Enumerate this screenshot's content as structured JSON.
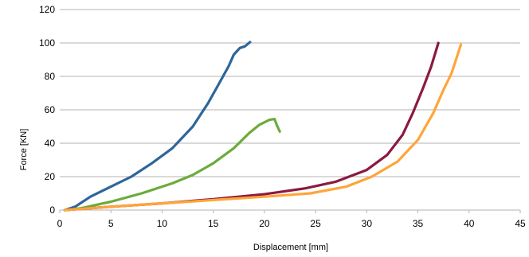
{
  "chart_data": {
    "type": "line",
    "title": "",
    "xlabel": "Displacement [mm]",
    "ylabel": "Force [KN]",
    "xlim": [
      0,
      45
    ],
    "ylim": [
      0,
      120
    ],
    "xticks": [
      0,
      5,
      10,
      15,
      20,
      25,
      30,
      35,
      40,
      45
    ],
    "yticks": [
      0,
      20,
      40,
      60,
      80,
      100,
      120
    ],
    "grid": "horizontal",
    "legend": "none",
    "series": [
      {
        "color": "#2e6699",
        "x": [
          0.5,
          1.5,
          3,
          5,
          7,
          9,
          11,
          13,
          14.5,
          15.5,
          16.5,
          17,
          17.3,
          17.6,
          18.1,
          18.6
        ],
        "y": [
          0,
          2,
          8,
          14,
          20,
          28,
          37,
          50,
          64,
          75,
          86,
          93,
          95,
          97,
          98,
          100.5
        ]
      },
      {
        "color": "#6cab3b",
        "x": [
          0.5,
          2,
          5,
          8,
          11,
          13,
          15,
          17,
          18.5,
          19.5,
          20.5,
          21,
          21.2,
          21.5
        ],
        "y": [
          0,
          1,
          5,
          10,
          16,
          21,
          28,
          37,
          46,
          51,
          54,
          54.5,
          51,
          47
        ]
      },
      {
        "color": "#8b1a3f",
        "x": [
          0.5,
          5,
          10,
          15,
          20,
          24,
          27,
          30,
          32,
          33.5,
          34.5,
          35.5,
          36.3,
          37
        ],
        "y": [
          0,
          2,
          4,
          6.5,
          9.5,
          13,
          17,
          24,
          33,
          45,
          58,
          73,
          86,
          100
        ]
      },
      {
        "color": "#ffa53a",
        "x": [
          0.5,
          5,
          10,
          15,
          20,
          24.5,
          28,
          30.5,
          33,
          35,
          36.5,
          37.5,
          38.3,
          39.2
        ],
        "y": [
          0,
          2,
          4,
          6,
          8,
          10,
          14,
          20,
          29,
          42,
          58,
          72,
          82,
          99
        ]
      }
    ]
  }
}
